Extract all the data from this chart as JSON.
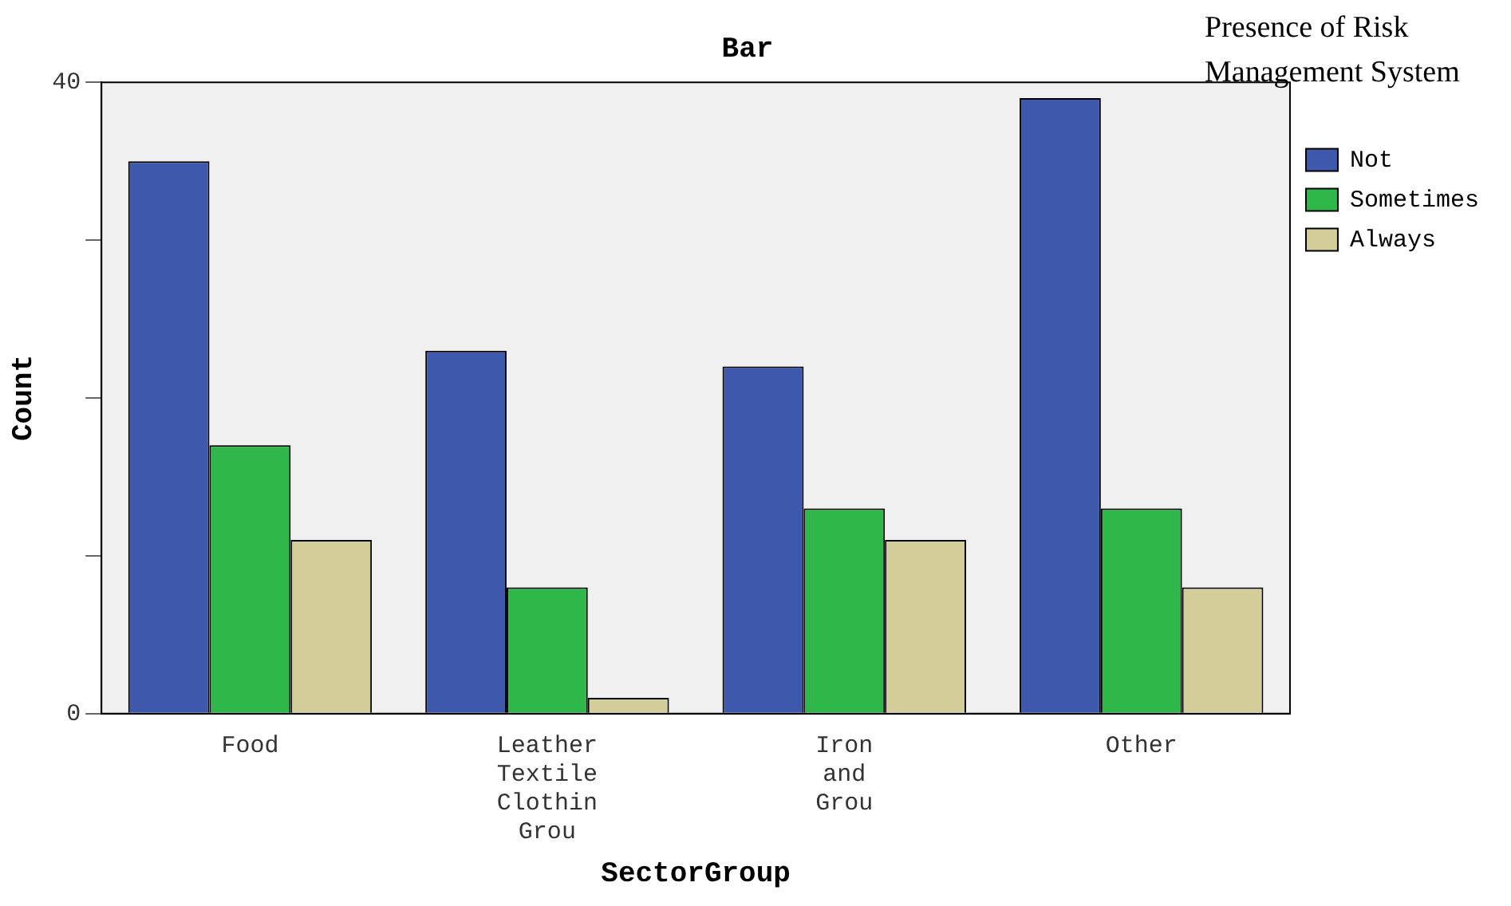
{
  "chart_data": {
    "type": "bar",
    "title": "Bar",
    "xlabel": "SectorGroup",
    "ylabel": "Count",
    "legend_title": "Presence of Risk Management System",
    "categories": [
      "Food",
      "Leather Textile Clothin Grou",
      "Iron and Grou",
      "Other"
    ],
    "series": [
      {
        "name": "Not",
        "color": "#3e58ab",
        "values": [
          35,
          23,
          22,
          39
        ]
      },
      {
        "name": "Sometimes",
        "color": "#2fb74a",
        "values": [
          17,
          8,
          13,
          13
        ]
      },
      {
        "name": "Always",
        "color": "#d3ce99",
        "values": [
          11,
          1,
          11,
          8
        ]
      }
    ],
    "ylim": [
      0,
      40
    ],
    "yticks": [
      0,
      {
        "value": 10,
        "label": null
      },
      {
        "value": 20,
        "label": null
      },
      {
        "value": 30,
        "label": null
      },
      40
    ],
    "grid": false,
    "legend": "right"
  }
}
